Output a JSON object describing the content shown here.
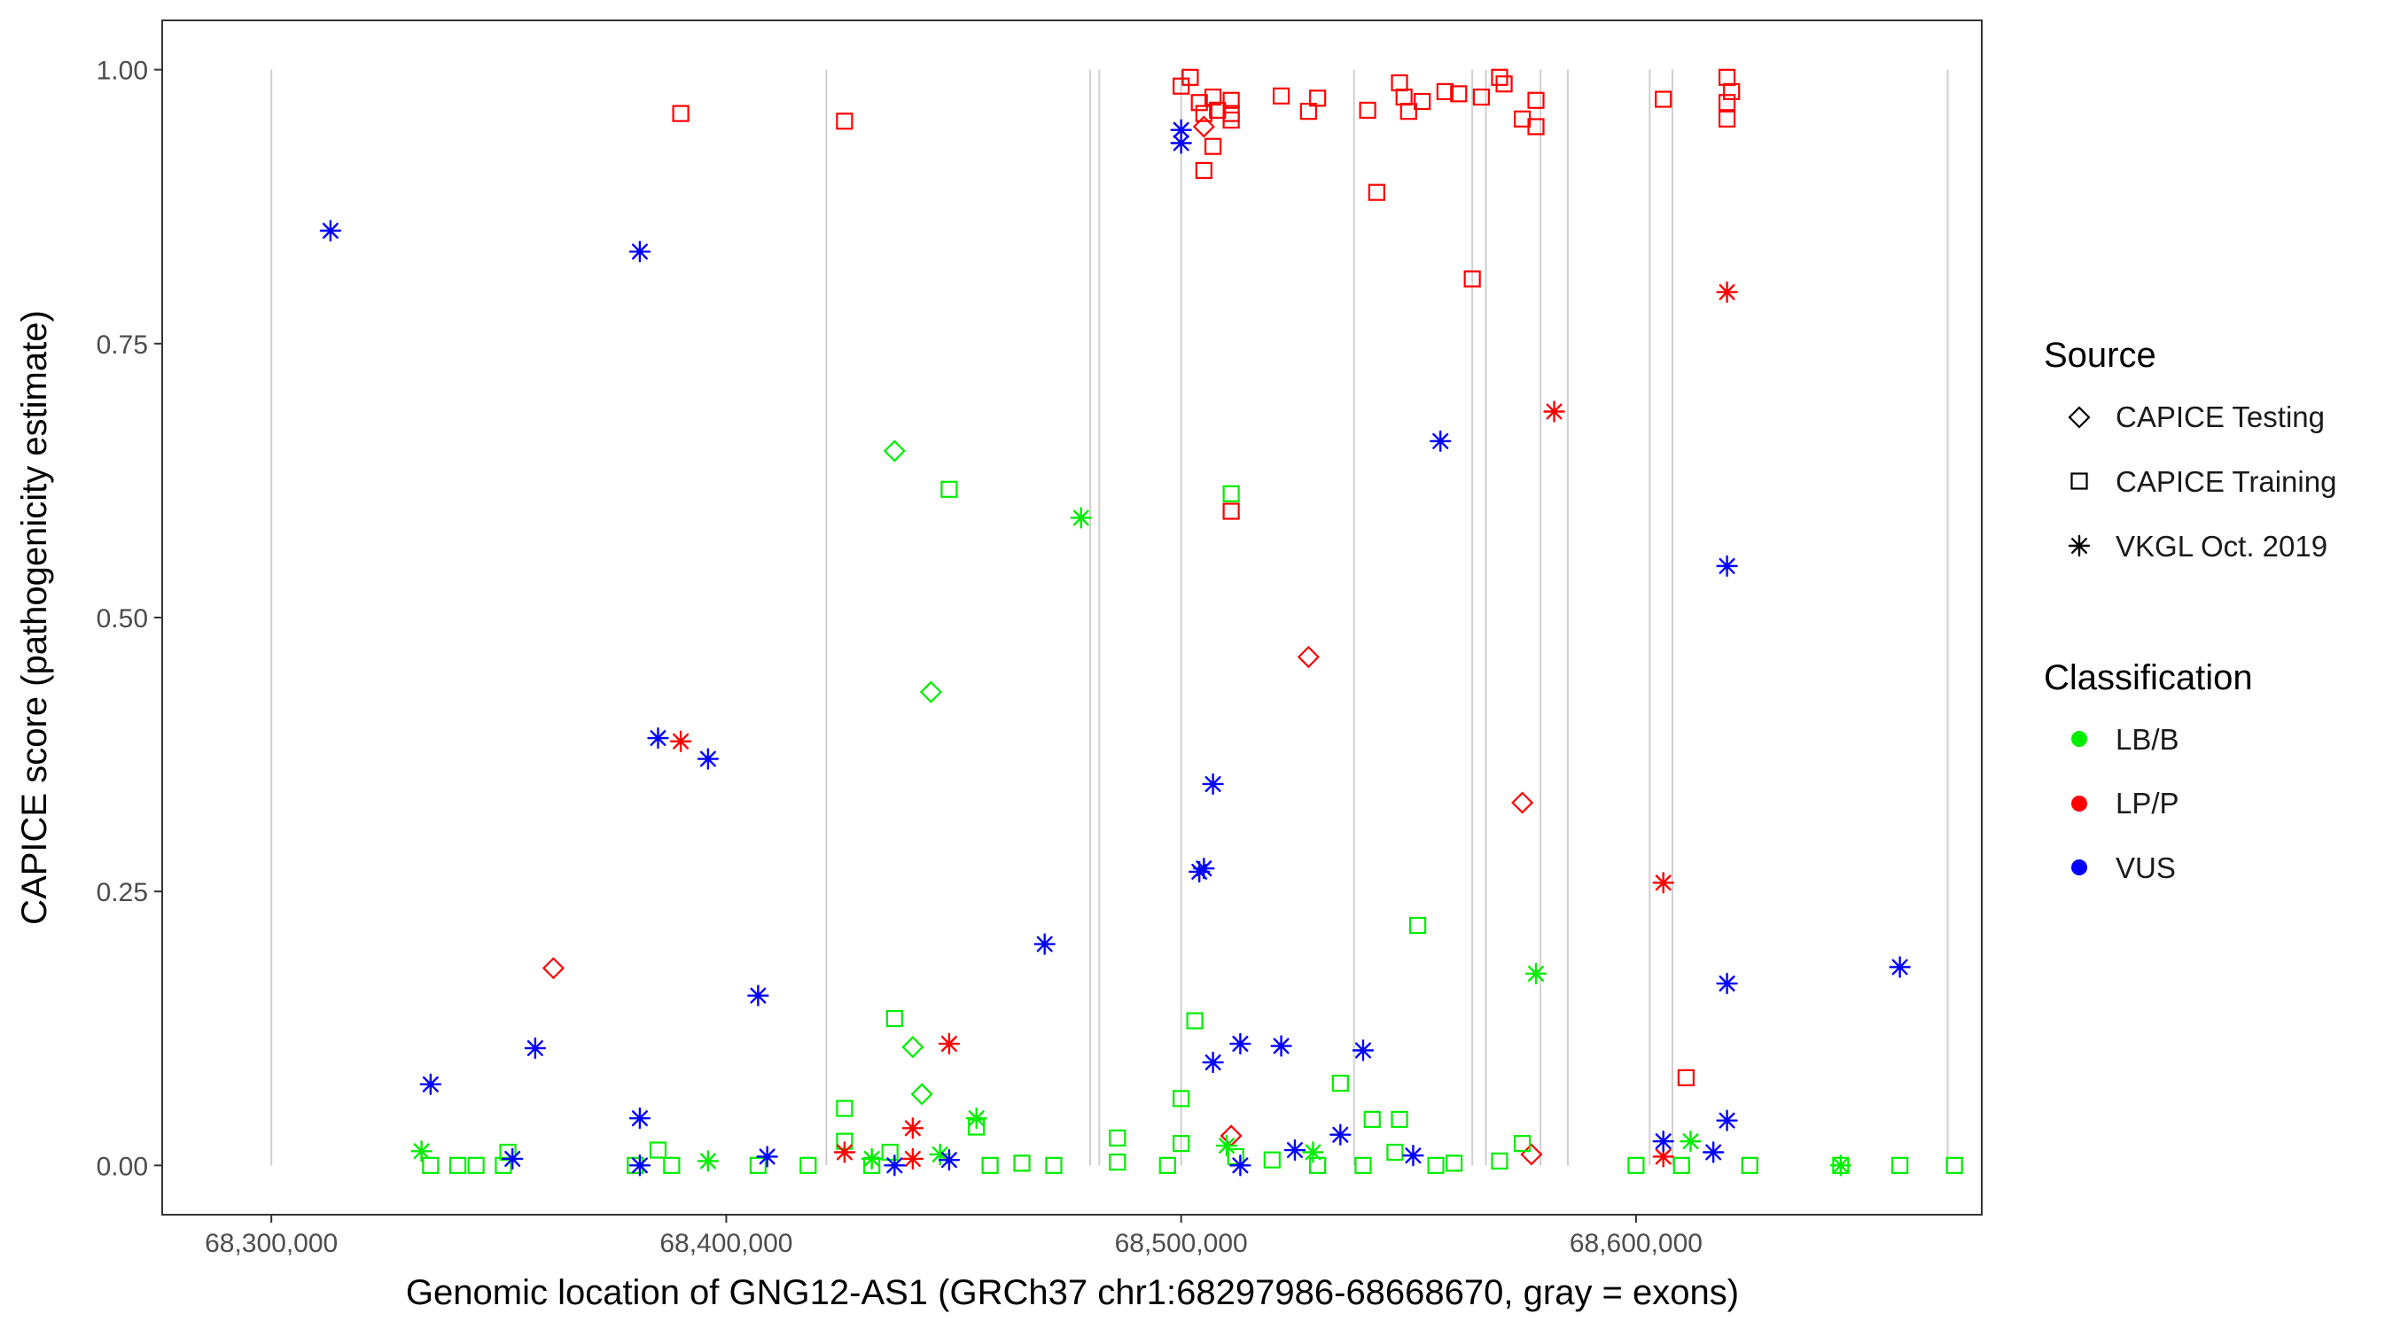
{
  "chart_data": {
    "type": "scatter",
    "title": "",
    "xlabel": "Genomic location of GNG12-AS1 (GRCh37 chr1:68297986-68668670, gray = exons)",
    "ylabel": "CAPICE score (pathogenicity estimate)",
    "xlim": [
      68276000,
      68676000
    ],
    "ylim": [
      -0.045,
      1.045
    ],
    "x_ticks": [
      68300000,
      68400000,
      68500000,
      68600000
    ],
    "x_tick_labels": [
      "68,300,000",
      "68,400,000",
      "68,500,000",
      "68,600,000"
    ],
    "y_ticks": [
      0,
      0.25,
      0.5,
      0.75,
      1.0
    ],
    "y_tick_labels": [
      "0.00",
      "0.25",
      "0.50",
      "0.75",
      "1.00"
    ],
    "grid": false,
    "exon_lines_x": [
      68300000,
      68422000,
      68480000,
      68482000,
      68500000,
      68538000,
      68564000,
      68567000,
      68579000,
      68585000,
      68603000,
      68608000,
      68668500
    ],
    "legend": {
      "source_title": "Source",
      "source_items": [
        {
          "label": "CAPICE Testing",
          "shape": "diamond"
        },
        {
          "label": "CAPICE Training",
          "shape": "square"
        },
        {
          "label": "VKGL Oct. 2019",
          "shape": "asterisk"
        }
      ],
      "class_title": "Classification",
      "class_items": [
        {
          "label": "LB/B",
          "color": "#00ee00"
        },
        {
          "label": "LP/P",
          "color": "#ff0000"
        },
        {
          "label": "VUS",
          "color": "#0000ff"
        }
      ]
    },
    "colors": {
      "LB/B": "#00ee00",
      "LP/P": "#ff0000",
      "VUS": "#0000ff"
    },
    "series": [
      {
        "name": "CAPICE Testing LB/B",
        "shape": "diamond",
        "class": "LB/B",
        "x": [
          68437000,
          68445000,
          68441000,
          68443000
        ],
        "y": [
          0.652,
          0.432,
          0.108,
          0.065
        ]
      },
      {
        "name": "CAPICE Testing LP/P",
        "shape": "diamond",
        "class": "LP/P",
        "x": [
          68362000,
          68505000,
          68528000,
          68575000,
          68577000,
          68511000
        ],
        "y": [
          0.18,
          0.948,
          0.464,
          0.331,
          0.01,
          0.027
        ]
      },
      {
        "name": "CAPICE Training LB/B",
        "shape": "square",
        "class": "LB/B",
        "x": [
          68449000,
          68511000,
          68552000,
          68437000,
          68503000,
          68500000,
          68426000,
          68535000,
          68542000,
          68548000,
          68455000,
          68385000,
          68352000,
          68426000,
          68500000,
          68436000,
          68486000,
          68512000,
          68575000,
          68547000,
          68335000,
          68341000,
          68345000,
          68351000,
          68380000,
          68388000,
          68407000,
          68418000,
          68432000,
          68458000,
          68465000,
          68472000,
          68486000,
          68497000,
          68520000,
          68530000,
          68540000,
          68556000,
          68560000,
          68570000,
          68600000,
          68610000,
          68625000,
          68645000,
          68658000,
          68670000
        ],
        "y": [
          0.617,
          0.613,
          0.219,
          0.134,
          0.132,
          0.061,
          0.052,
          0.075,
          0.042,
          0.042,
          0.035,
          0.014,
          0.012,
          0.022,
          0.02,
          0.012,
          0.025,
          0.008,
          0.02,
          0.012,
          0.0,
          0.0,
          0.0,
          0.0,
          0.0,
          0.0,
          0.0,
          0.0,
          0.0,
          0.0,
          0.002,
          0.0,
          0.003,
          0.0,
          0.005,
          0.0,
          0.0,
          0.0,
          0.002,
          0.004,
          0.0,
          0.0,
          0.0,
          0.0,
          0.0,
          0.0
        ]
      },
      {
        "name": "CAPICE Training LP/P",
        "shape": "square",
        "class": "LP/P",
        "x": [
          68390000,
          68426000,
          68500000,
          68502000,
          68504000,
          68505000,
          68507000,
          68508000,
          68511000,
          68511000,
          68505000,
          68507000,
          68511000,
          68522000,
          68528000,
          68530000,
          68541000,
          68548000,
          68549000,
          68550000,
          68553000,
          68558000,
          68561000,
          68566000,
          68570000,
          68571000,
          68575000,
          68578000,
          68578000,
          68564000,
          68543000,
          68606000,
          68620000,
          68621000,
          68620000,
          68620000,
          68611000,
          68511000
        ],
        "y": [
          0.96,
          0.953,
          0.985,
          0.993,
          0.97,
          0.96,
          0.975,
          0.963,
          0.972,
          0.96,
          0.908,
          0.93,
          0.954,
          0.976,
          0.962,
          0.974,
          0.963,
          0.988,
          0.975,
          0.962,
          0.971,
          0.98,
          0.978,
          0.975,
          0.993,
          0.987,
          0.955,
          0.972,
          0.948,
          0.809,
          0.888,
          0.973,
          0.993,
          0.98,
          0.97,
          0.955,
          0.08,
          0.597
        ]
      },
      {
        "name": "VKGL LB/B",
        "shape": "asterisk",
        "class": "LB/B",
        "x": [
          68333000,
          68478000,
          68578000,
          68455000,
          68612000,
          68432000,
          68447000,
          68529000,
          68645000,
          68510000,
          68396000
        ],
        "y": [
          0.013,
          0.591,
          0.175,
          0.043,
          0.022,
          0.006,
          0.01,
          0.012,
          0.0,
          0.018,
          0.004
        ]
      },
      {
        "name": "VKGL LP/P",
        "shape": "asterisk",
        "class": "LP/P",
        "x": [
          68390000,
          68449000,
          68620000,
          68582000,
          68606000,
          68441000,
          68426000,
          68606000,
          68441000
        ],
        "y": [
          0.387,
          0.111,
          0.797,
          0.688,
          0.258,
          0.034,
          0.012,
          0.008,
          0.006
        ]
      },
      {
        "name": "VKGL VUS",
        "shape": "asterisk",
        "class": "VUS",
        "x": [
          68313000,
          68381000,
          68385000,
          68396000,
          68407000,
          68335000,
          68358000,
          68381000,
          68470000,
          68507000,
          68505000,
          68504000,
          68500000,
          68500000,
          68507000,
          68513000,
          68522000,
          68540000,
          68557000,
          68620000,
          68620000,
          68620000,
          68658000,
          68535000,
          68606000,
          68617000,
          68525000,
          68353000,
          68409000,
          68381000,
          68449000,
          68513000,
          68551000,
          68437000
        ],
        "y": [
          0.853,
          0.834,
          0.39,
          0.371,
          0.155,
          0.074,
          0.107,
          0.043,
          0.202,
          0.348,
          0.271,
          0.268,
          0.945,
          0.933,
          0.094,
          0.111,
          0.109,
          0.105,
          0.661,
          0.547,
          0.166,
          0.041,
          0.181,
          0.028,
          0.022,
          0.012,
          0.014,
          0.006,
          0.008,
          0.0,
          0.005,
          0.0,
          0.009,
          0.0
        ]
      }
    ]
  }
}
